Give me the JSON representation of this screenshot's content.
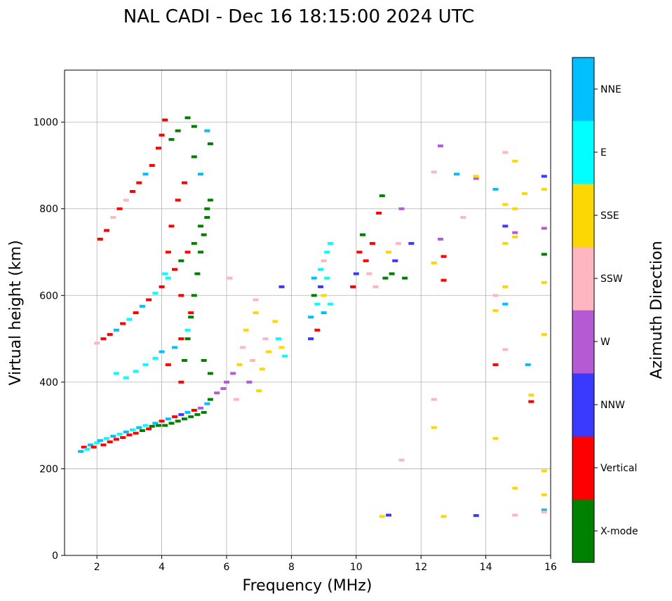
{
  "chart_data": {
    "type": "scatter",
    "title": "NAL CADI - Dec 16 18:15:00 2024 UTC",
    "xlabel": "Frequency (MHz)",
    "ylabel": "Virtual height (km)",
    "xlim": [
      1,
      16
    ],
    "ylim": [
      0,
      1120
    ],
    "xticks": [
      2,
      4,
      6,
      8,
      10,
      12,
      14,
      16
    ],
    "yticks": [
      0,
      200,
      400,
      600,
      800,
      1000
    ],
    "grid": true,
    "colorbar": {
      "label": "Azimuth Direction",
      "categories": [
        "X-mode",
        "Vertical",
        "NNW",
        "W",
        "SSW",
        "SSE",
        "E",
        "NNE"
      ],
      "colors": [
        "#008000",
        "#ff0000",
        "#3a3aff",
        "#b45ad2",
        "#ffb6c1",
        "#ffd700",
        "#00ffff",
        "#00bfff"
      ]
    },
    "points_note": "each point is [frequency MHz, virtual height km, direction index]",
    "points": [
      [
        1.5,
        240,
        7
      ],
      [
        1.6,
        250,
        1
      ],
      [
        1.7,
        245,
        6
      ],
      [
        1.8,
        255,
        7
      ],
      [
        1.9,
        250,
        1
      ],
      [
        2.0,
        260,
        6
      ],
      [
        2.1,
        265,
        7
      ],
      [
        2.2,
        255,
        1
      ],
      [
        2.3,
        270,
        6
      ],
      [
        2.4,
        262,
        1
      ],
      [
        2.5,
        275,
        7
      ],
      [
        2.6,
        268,
        1
      ],
      [
        2.7,
        280,
        6
      ],
      [
        2.8,
        272,
        1
      ],
      [
        2.9,
        285,
        7
      ],
      [
        3.0,
        278,
        1
      ],
      [
        3.1,
        290,
        6
      ],
      [
        3.2,
        282,
        1
      ],
      [
        3.3,
        295,
        7
      ],
      [
        3.4,
        288,
        0
      ],
      [
        3.5,
        300,
        6
      ],
      [
        3.6,
        292,
        1
      ],
      [
        3.7,
        298,
        0
      ],
      [
        3.8,
        305,
        7
      ],
      [
        3.9,
        300,
        0
      ],
      [
        4.0,
        310,
        1
      ],
      [
        4.1,
        300,
        0
      ],
      [
        4.2,
        315,
        7
      ],
      [
        4.3,
        305,
        0
      ],
      [
        4.4,
        320,
        1
      ],
      [
        4.5,
        310,
        0
      ],
      [
        4.6,
        325,
        2
      ],
      [
        4.7,
        315,
        0
      ],
      [
        4.8,
        330,
        7
      ],
      [
        4.9,
        320,
        0
      ],
      [
        5.0,
        335,
        1
      ],
      [
        5.1,
        325,
        0
      ],
      [
        5.2,
        340,
        3
      ],
      [
        5.3,
        330,
        0
      ],
      [
        5.4,
        350,
        7
      ],
      [
        5.5,
        360,
        0
      ],
      [
        5.7,
        375,
        3
      ],
      [
        5.9,
        385,
        3
      ],
      [
        2.0,
        490,
        4
      ],
      [
        2.2,
        500,
        1
      ],
      [
        2.4,
        510,
        1
      ],
      [
        2.6,
        520,
        7
      ],
      [
        2.8,
        535,
        1
      ],
      [
        3.0,
        545,
        6
      ],
      [
        3.2,
        560,
        1
      ],
      [
        3.4,
        575,
        7
      ],
      [
        3.6,
        590,
        1
      ],
      [
        3.8,
        605,
        6
      ],
      [
        4.0,
        620,
        1
      ],
      [
        4.2,
        640,
        6
      ],
      [
        4.4,
        660,
        1
      ],
      [
        4.6,
        680,
        0
      ],
      [
        4.8,
        700,
        1
      ],
      [
        5.0,
        720,
        0
      ],
      [
        5.2,
        760,
        0
      ],
      [
        5.4,
        800,
        0
      ],
      [
        2.6,
        420,
        6
      ],
      [
        2.9,
        410,
        6
      ],
      [
        3.2,
        425,
        6
      ],
      [
        3.5,
        440,
        6
      ],
      [
        3.8,
        455,
        6
      ],
      [
        4.0,
        470,
        7
      ],
      [
        4.2,
        440,
        1
      ],
      [
        4.4,
        480,
        7
      ],
      [
        4.6,
        500,
        1
      ],
      [
        4.8,
        520,
        6
      ],
      [
        2.1,
        730,
        1
      ],
      [
        2.3,
        750,
        1
      ],
      [
        2.5,
        780,
        4
      ],
      [
        2.7,
        800,
        1
      ],
      [
        2.9,
        820,
        4
      ],
      [
        3.1,
        840,
        1
      ],
      [
        3.3,
        860,
        1
      ],
      [
        3.5,
        880,
        7
      ],
      [
        3.7,
        900,
        1
      ],
      [
        3.9,
        940,
        1
      ],
      [
        4.0,
        970,
        1
      ],
      [
        4.1,
        1005,
        1
      ],
      [
        4.3,
        960,
        0
      ],
      [
        4.5,
        980,
        0
      ],
      [
        4.8,
        1010,
        0
      ],
      [
        5.0,
        990,
        0
      ],
      [
        5.4,
        980,
        7
      ],
      [
        5.5,
        950,
        0
      ],
      [
        4.6,
        400,
        1
      ],
      [
        4.7,
        450,
        0
      ],
      [
        4.8,
        500,
        0
      ],
      [
        4.9,
        550,
        0
      ],
      [
        5.0,
        600,
        0
      ],
      [
        5.1,
        650,
        0
      ],
      [
        5.2,
        700,
        0
      ],
      [
        5.3,
        740,
        0
      ],
      [
        5.4,
        780,
        0
      ],
      [
        5.5,
        820,
        0
      ],
      [
        5.2,
        880,
        7
      ],
      [
        5.0,
        920,
        0
      ],
      [
        4.7,
        860,
        1
      ],
      [
        4.5,
        820,
        1
      ],
      [
        4.3,
        760,
        1
      ],
      [
        4.2,
        700,
        1
      ],
      [
        4.1,
        650,
        6
      ],
      [
        4.6,
        600,
        1
      ],
      [
        4.9,
        560,
        1
      ],
      [
        5.3,
        450,
        0
      ],
      [
        5.5,
        420,
        0
      ],
      [
        6.0,
        400,
        3
      ],
      [
        6.2,
        420,
        3
      ],
      [
        6.3,
        360,
        4
      ],
      [
        6.4,
        440,
        5
      ],
      [
        6.5,
        480,
        4
      ],
      [
        6.6,
        520,
        5
      ],
      [
        6.7,
        400,
        3
      ],
      [
        6.8,
        450,
        4
      ],
      [
        6.9,
        560,
        5
      ],
      [
        7.0,
        380,
        5
      ],
      [
        7.1,
        430,
        5
      ],
      [
        7.2,
        500,
        4
      ],
      [
        7.3,
        470,
        5
      ],
      [
        7.5,
        540,
        5
      ],
      [
        7.6,
        500,
        6
      ],
      [
        7.7,
        480,
        5
      ],
      [
        7.8,
        460,
        6
      ],
      [
        7.7,
        620,
        2
      ],
      [
        6.1,
        640,
        4
      ],
      [
        6.9,
        590,
        4
      ],
      [
        8.6,
        500,
        2
      ],
      [
        8.6,
        550,
        7
      ],
      [
        8.7,
        600,
        0
      ],
      [
        8.7,
        640,
        7
      ],
      [
        8.8,
        520,
        1
      ],
      [
        8.8,
        580,
        6
      ],
      [
        8.9,
        620,
        2
      ],
      [
        8.9,
        660,
        6
      ],
      [
        9.0,
        560,
        7
      ],
      [
        9.0,
        600,
        5
      ],
      [
        9.1,
        640,
        6
      ],
      [
        9.1,
        700,
        6
      ],
      [
        9.2,
        580,
        6
      ],
      [
        9.2,
        720,
        6
      ],
      [
        9.0,
        680,
        4
      ],
      [
        9.9,
        620,
        1
      ],
      [
        10.0,
        650,
        2
      ],
      [
        10.1,
        700,
        1
      ],
      [
        10.2,
        740,
        0
      ],
      [
        10.3,
        680,
        1
      ],
      [
        10.4,
        650,
        4
      ],
      [
        10.5,
        720,
        1
      ],
      [
        10.6,
        620,
        4
      ],
      [
        10.7,
        790,
        1
      ],
      [
        10.8,
        830,
        0
      ],
      [
        10.9,
        640,
        0
      ],
      [
        11.0,
        700,
        5
      ],
      [
        11.1,
        650,
        0
      ],
      [
        11.2,
        680,
        2
      ],
      [
        11.3,
        720,
        4
      ],
      [
        11.4,
        800,
        3
      ],
      [
        11.5,
        640,
        0
      ],
      [
        11.7,
        720,
        2
      ],
      [
        10.8,
        90,
        5
      ],
      [
        11.0,
        93,
        2
      ],
      [
        11.4,
        220,
        4
      ],
      [
        12.4,
        885,
        4
      ],
      [
        12.4,
        675,
        5
      ],
      [
        12.4,
        360,
        4
      ],
      [
        12.4,
        295,
        5
      ],
      [
        12.6,
        945,
        3
      ],
      [
        12.6,
        730,
        3
      ],
      [
        12.7,
        635,
        1
      ],
      [
        12.7,
        690,
        1
      ],
      [
        12.7,
        90,
        5
      ],
      [
        13.1,
        880,
        7
      ],
      [
        13.3,
        780,
        4
      ],
      [
        13.7,
        870,
        3
      ],
      [
        13.7,
        875,
        5
      ],
      [
        13.7,
        92,
        2
      ],
      [
        14.3,
        845,
        7
      ],
      [
        14.3,
        600,
        4
      ],
      [
        14.3,
        565,
        5
      ],
      [
        14.3,
        440,
        1
      ],
      [
        14.3,
        270,
        5
      ],
      [
        14.6,
        930,
        4
      ],
      [
        14.6,
        810,
        5
      ],
      [
        14.6,
        760,
        2
      ],
      [
        14.6,
        720,
        5
      ],
      [
        14.6,
        620,
        5
      ],
      [
        14.6,
        580,
        7
      ],
      [
        14.6,
        475,
        4
      ],
      [
        14.9,
        910,
        5
      ],
      [
        14.9,
        800,
        5
      ],
      [
        14.9,
        745,
        3
      ],
      [
        14.9,
        735,
        5
      ],
      [
        14.9,
        155,
        5
      ],
      [
        14.9,
        93,
        4
      ],
      [
        15.2,
        835,
        5
      ],
      [
        15.3,
        440,
        7
      ],
      [
        15.4,
        370,
        5
      ],
      [
        15.4,
        355,
        1
      ],
      [
        15.8,
        875,
        2
      ],
      [
        15.8,
        845,
        5
      ],
      [
        15.8,
        755,
        3
      ],
      [
        15.8,
        695,
        0
      ],
      [
        15.8,
        630,
        5
      ],
      [
        15.8,
        510,
        5
      ],
      [
        15.8,
        195,
        5
      ],
      [
        15.8,
        140,
        5
      ],
      [
        15.8,
        105,
        7
      ],
      [
        15.8,
        100,
        4
      ]
    ]
  }
}
